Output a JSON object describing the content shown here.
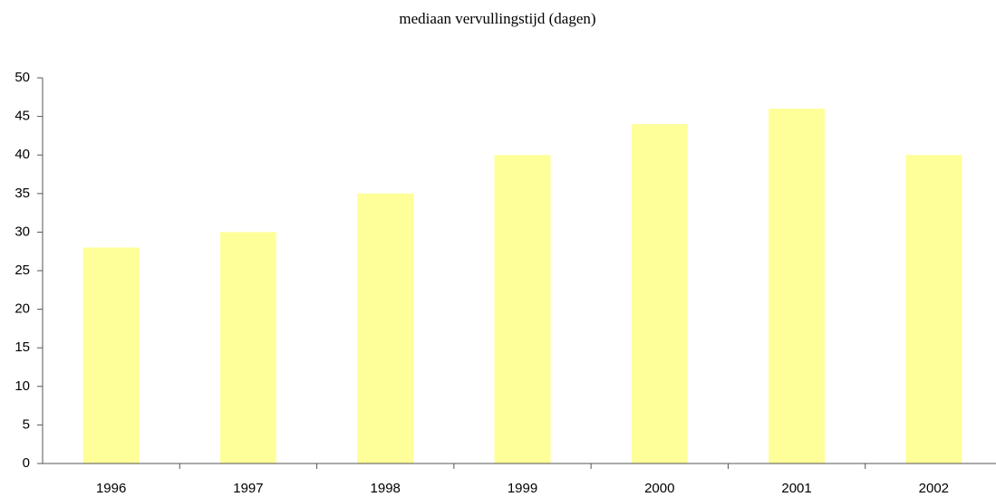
{
  "chart_data": {
    "type": "bar",
    "title": "mediaan vervullingstijd (dagen)",
    "categories": [
      "1996",
      "1997",
      "1998",
      "1999",
      "2000",
      "2001",
      "2002"
    ],
    "values": [
      28,
      30,
      35,
      40,
      44,
      46,
      40
    ],
    "color": "#ffff99",
    "ylim": [
      0,
      50
    ],
    "yticks": [
      0,
      5,
      10,
      15,
      20,
      25,
      30,
      35,
      40,
      45,
      50
    ],
    "grid": false
  }
}
